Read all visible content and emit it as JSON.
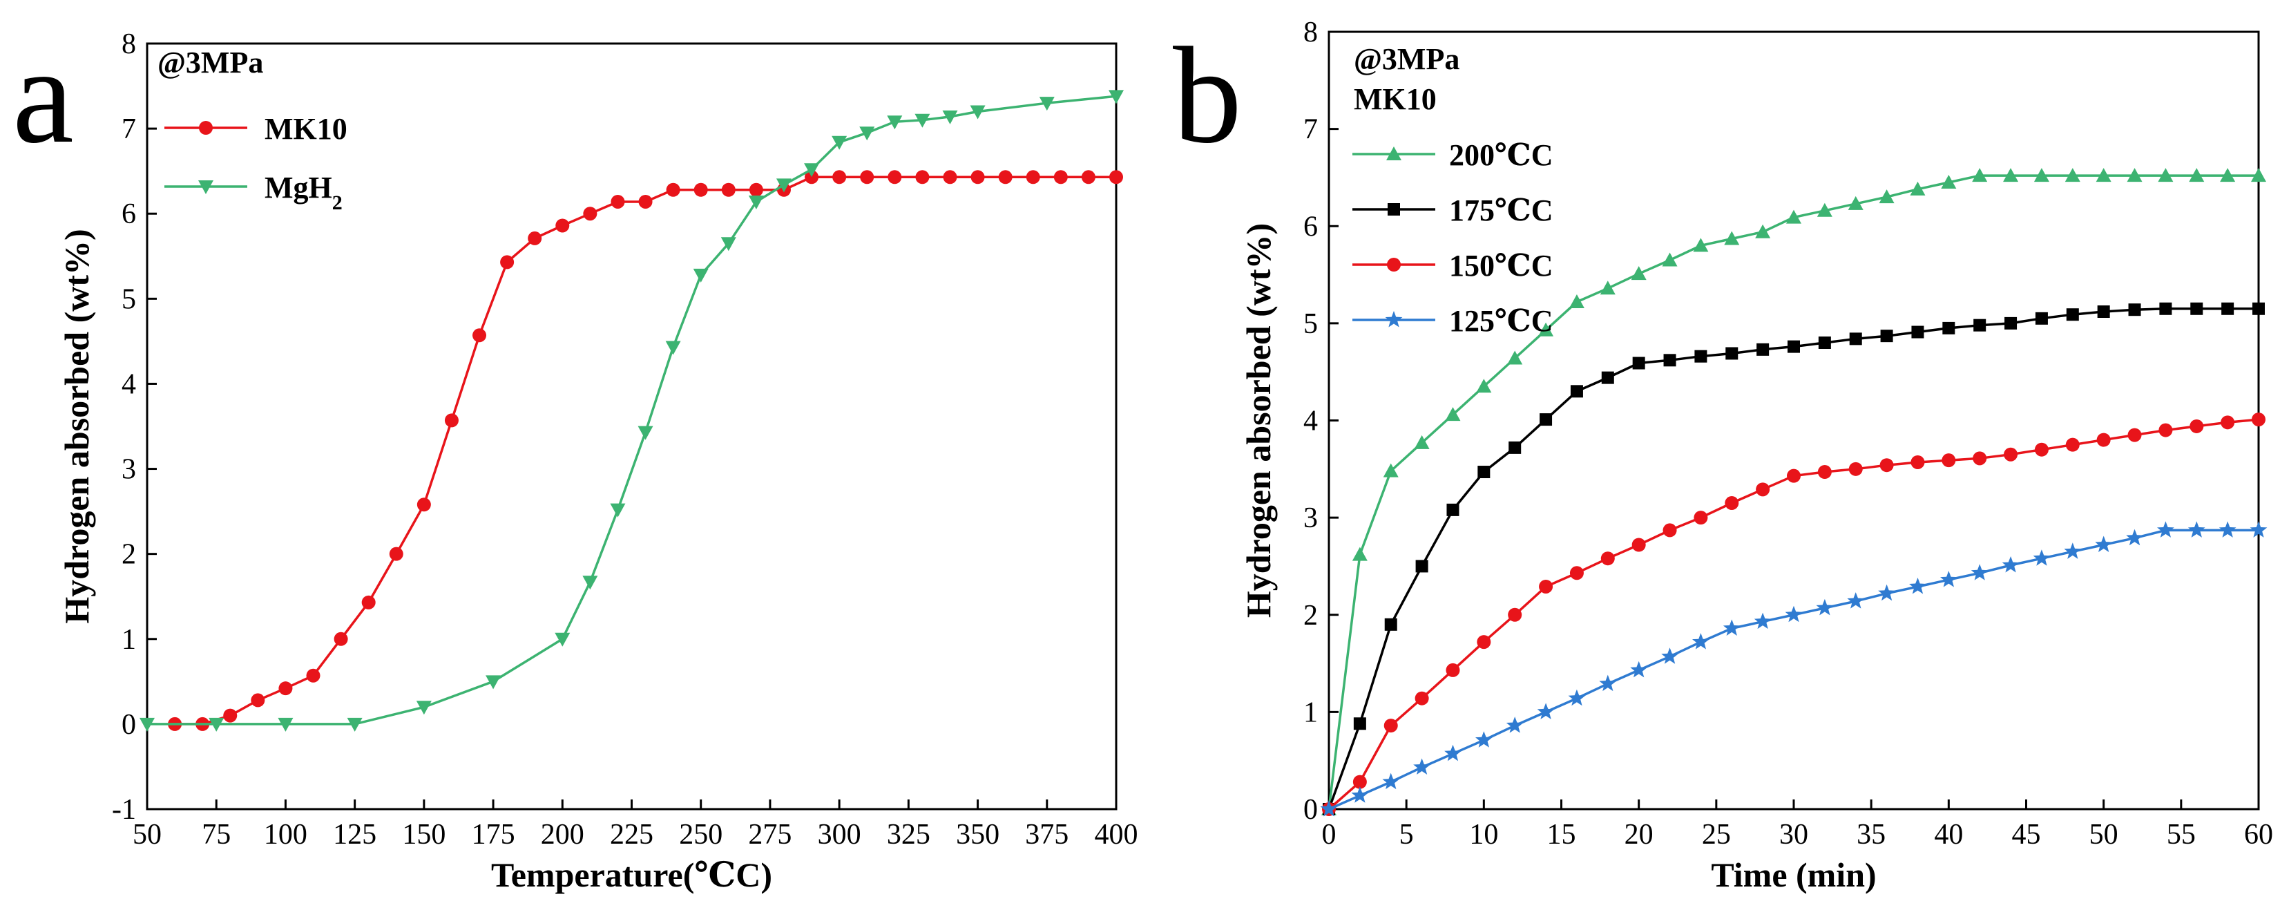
{
  "chart_data": [
    {
      "type": "line",
      "panel_letter": "a",
      "xlabel": "Temperature(℃C)",
      "ylabel": "Hydrogen absorbed (wt%)",
      "xlim": [
        50,
        400
      ],
      "ylim": [
        -1,
        8
      ],
      "xticks": [
        50,
        75,
        100,
        125,
        150,
        175,
        200,
        225,
        250,
        275,
        300,
        325,
        350,
        375,
        400
      ],
      "yticks": [
        -1,
        0,
        1,
        2,
        3,
        4,
        5,
        6,
        7,
        8
      ],
      "legend_position": "top-left",
      "legend_header": [
        "@3MPa"
      ],
      "series": [
        {
          "name": "MK10",
          "color": "#e8141a",
          "marker": "circle",
          "x": [
            60,
            70,
            80,
            90,
            100,
            110,
            120,
            130,
            140,
            150,
            160,
            170,
            180,
            190,
            200,
            210,
            220,
            230,
            240,
            250,
            260,
            270,
            280,
            290,
            300,
            310,
            320,
            330,
            340,
            350,
            360,
            370,
            380,
            390,
            400
          ],
          "y": [
            0,
            0,
            0.1,
            0.28,
            0.42,
            0.57,
            1.0,
            1.43,
            2.0,
            2.58,
            3.57,
            4.57,
            5.43,
            5.71,
            5.86,
            6.0,
            6.14,
            6.14,
            6.28,
            6.28,
            6.28,
            6.28,
            6.28,
            6.43,
            6.43,
            6.43,
            6.43,
            6.43,
            6.43,
            6.43,
            6.43,
            6.43,
            6.43,
            6.43,
            6.43
          ]
        },
        {
          "name": "MgH",
          "name_sub": "2",
          "color": "#3cb371",
          "marker": "triangle-down",
          "x": [
            50,
            75,
            100,
            125,
            150,
            175,
            200,
            210,
            220,
            230,
            240,
            250,
            260,
            270,
            280,
            290,
            300,
            310,
            320,
            330,
            340,
            350,
            375,
            400
          ],
          "y": [
            0,
            0,
            0,
            0,
            0.2,
            0.5,
            1.0,
            1.67,
            2.52,
            3.43,
            4.43,
            5.28,
            5.65,
            6.14,
            6.34,
            6.52,
            6.84,
            6.95,
            7.08,
            7.1,
            7.14,
            7.2,
            7.3,
            7.38
          ]
        }
      ]
    },
    {
      "type": "line",
      "panel_letter": "b",
      "xlabel": "Time (min)",
      "ylabel": "Hydrogen absorbed (wt%)",
      "xlim": [
        0,
        60
      ],
      "ylim": [
        0,
        8
      ],
      "xticks": [
        0,
        5,
        10,
        15,
        20,
        25,
        30,
        35,
        40,
        45,
        50,
        55,
        60
      ],
      "yticks": [
        0,
        1,
        2,
        3,
        4,
        5,
        6,
        7,
        8
      ],
      "legend_position": "top-left",
      "legend_header": [
        "@3MPa",
        "MK10"
      ],
      "series": [
        {
          "name": "200℃C",
          "color": "#3cb371",
          "marker": "triangle-up",
          "x": [
            0,
            2,
            4,
            6,
            8,
            10,
            12,
            14,
            16,
            18,
            20,
            22,
            24,
            26,
            28,
            30,
            32,
            34,
            36,
            38,
            40,
            42,
            44,
            46,
            48,
            50,
            52,
            54,
            56,
            58,
            60
          ],
          "y": [
            0,
            2.62,
            3.48,
            3.77,
            4.06,
            4.35,
            4.64,
            4.93,
            5.22,
            5.36,
            5.51,
            5.65,
            5.8,
            5.87,
            5.94,
            6.09,
            6.16,
            6.23,
            6.3,
            6.38,
            6.45,
            6.52,
            6.52,
            6.52,
            6.52,
            6.52,
            6.52,
            6.52,
            6.52,
            6.52,
            6.52
          ]
        },
        {
          "name": "175℃C",
          "color": "#000000",
          "marker": "square",
          "x": [
            0,
            2,
            4,
            6,
            8,
            10,
            12,
            14,
            16,
            18,
            20,
            22,
            24,
            26,
            28,
            30,
            32,
            34,
            36,
            38,
            40,
            42,
            44,
            46,
            48,
            50,
            52,
            54,
            56,
            58,
            60
          ],
          "y": [
            0,
            0.88,
            1.9,
            2.5,
            3.08,
            3.47,
            3.72,
            4.01,
            4.3,
            4.44,
            4.59,
            4.62,
            4.66,
            4.69,
            4.73,
            4.76,
            4.8,
            4.84,
            4.87,
            4.91,
            4.95,
            4.98,
            5.0,
            5.05,
            5.09,
            5.12,
            5.14,
            5.15,
            5.15,
            5.15,
            5.15
          ]
        },
        {
          "name": "150℃C",
          "color": "#e8141a",
          "marker": "circle",
          "x": [
            0,
            2,
            4,
            6,
            8,
            10,
            12,
            14,
            16,
            18,
            20,
            22,
            24,
            26,
            28,
            30,
            32,
            34,
            36,
            38,
            40,
            42,
            44,
            46,
            48,
            50,
            52,
            54,
            56,
            58,
            60
          ],
          "y": [
            0,
            0.28,
            0.86,
            1.14,
            1.43,
            1.72,
            2.0,
            2.29,
            2.43,
            2.58,
            2.72,
            2.87,
            3.0,
            3.15,
            3.29,
            3.43,
            3.47,
            3.5,
            3.54,
            3.57,
            3.59,
            3.61,
            3.65,
            3.7,
            3.75,
            3.8,
            3.85,
            3.9,
            3.94,
            3.98,
            4.01
          ]
        },
        {
          "name": "125℃C",
          "color": "#2f7bd1",
          "marker": "star",
          "x": [
            0,
            2,
            4,
            6,
            8,
            10,
            12,
            14,
            16,
            18,
            20,
            22,
            24,
            26,
            28,
            30,
            32,
            34,
            36,
            38,
            40,
            42,
            44,
            46,
            48,
            50,
            52,
            54,
            56,
            58,
            60
          ],
          "y": [
            0,
            0.14,
            0.28,
            0.43,
            0.57,
            0.71,
            0.86,
            1.0,
            1.14,
            1.29,
            1.43,
            1.57,
            1.72,
            1.86,
            1.93,
            2.0,
            2.07,
            2.14,
            2.22,
            2.29,
            2.36,
            2.43,
            2.51,
            2.58,
            2.65,
            2.72,
            2.79,
            2.87,
            2.87,
            2.87,
            2.87
          ]
        }
      ]
    }
  ]
}
